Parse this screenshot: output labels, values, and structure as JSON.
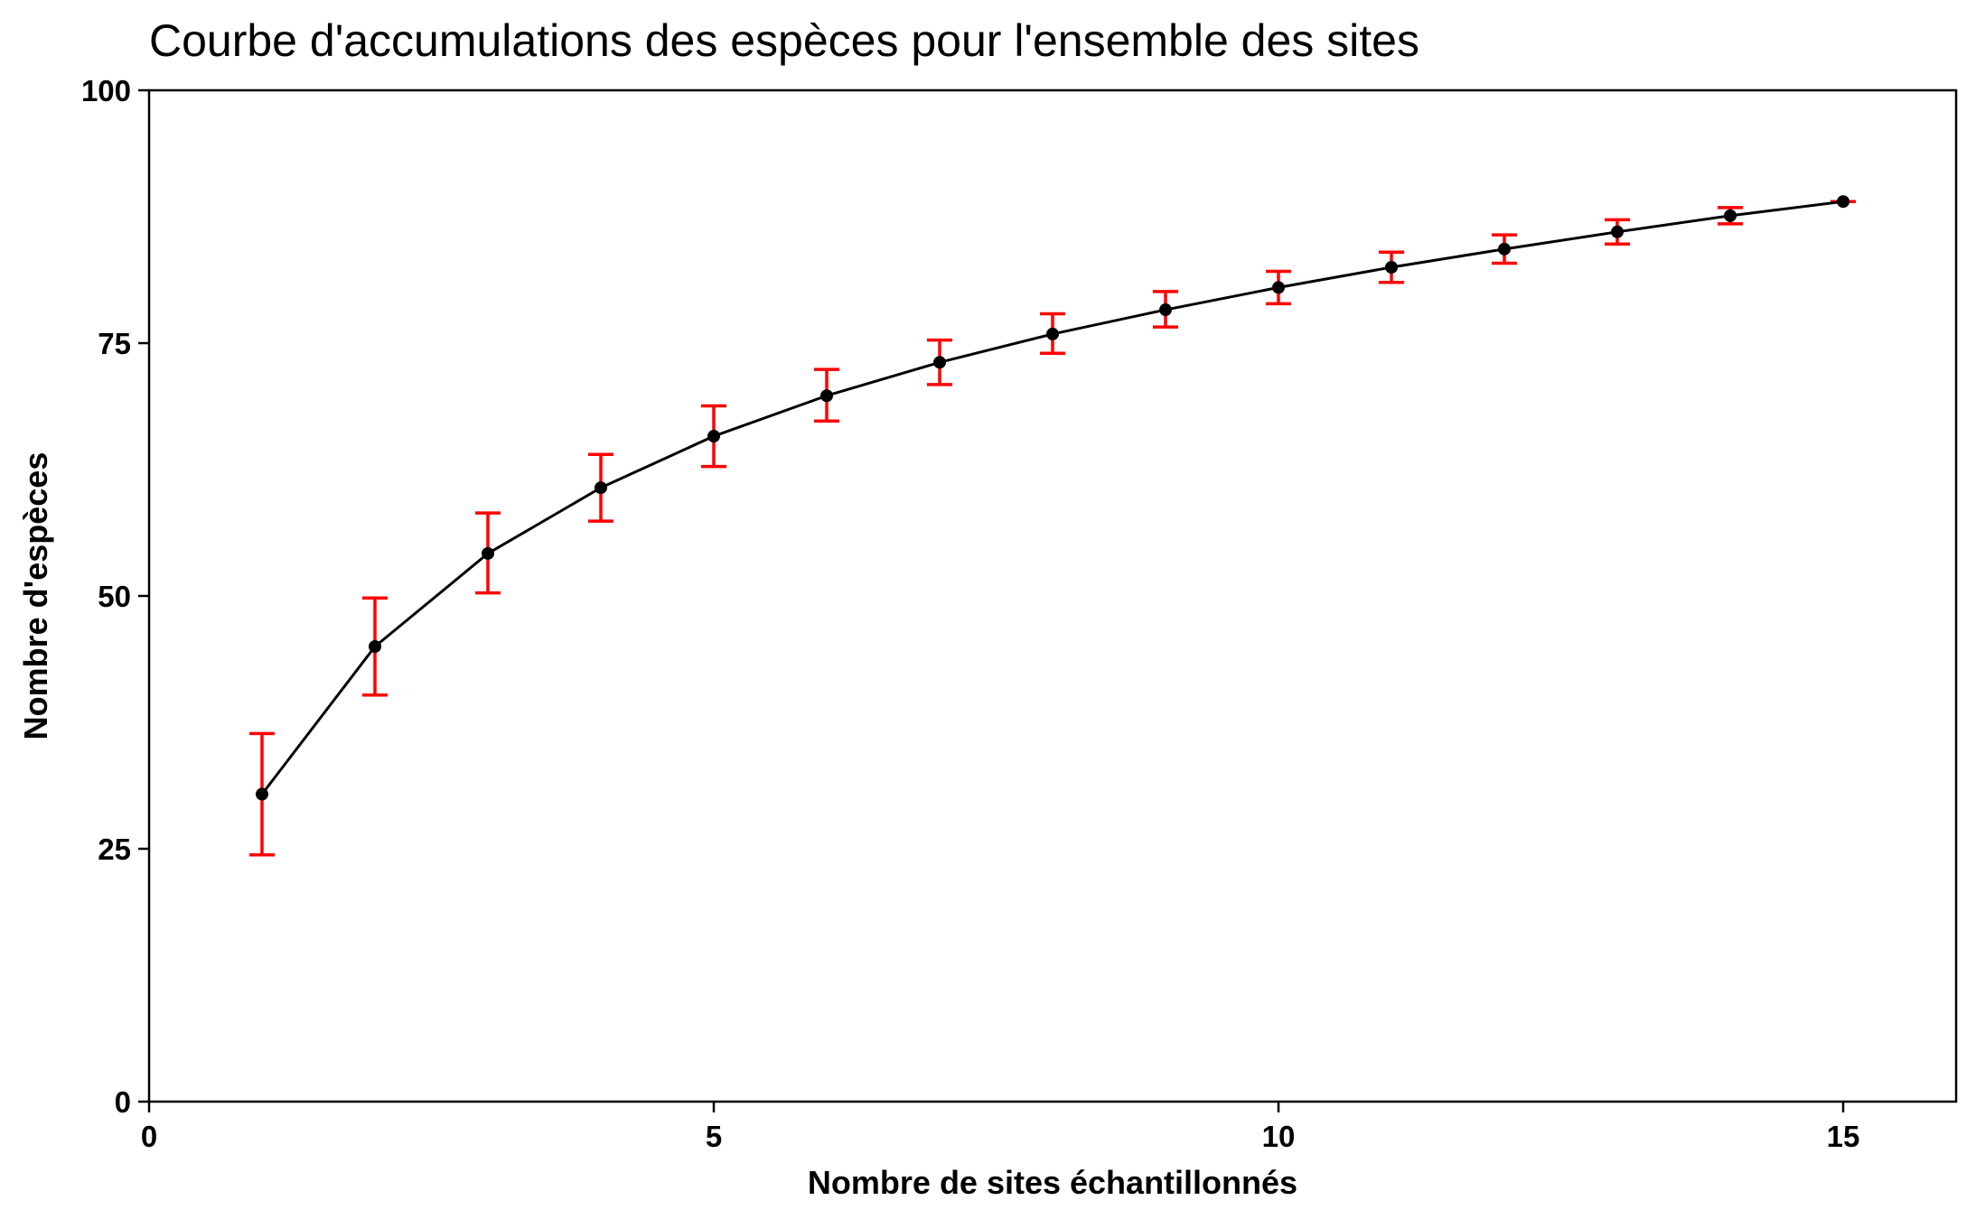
{
  "chart_data": {
    "type": "line",
    "title": "Courbe d'accumulations des espèces pour l'ensemble des sites",
    "xlabel": "Nombre de sites échantillonnés",
    "ylabel": "Nombre d'espèces",
    "xlim": [
      0,
      16
    ],
    "ylim": [
      0,
      100
    ],
    "xticks": [
      0,
      5,
      10,
      15
    ],
    "yticks": [
      0,
      25,
      50,
      75,
      100
    ],
    "grid": false,
    "legend": "none",
    "series": [
      {
        "x": [
          1,
          2,
          3,
          4,
          5,
          6,
          7,
          8,
          9,
          10,
          11,
          12,
          13,
          14,
          15
        ],
        "values": [
          30.4,
          45.0,
          54.2,
          60.7,
          65.8,
          69.8,
          73.1,
          75.9,
          78.3,
          80.5,
          82.5,
          84.3,
          86.0,
          87.6,
          89.0
        ],
        "error_low": [
          24.4,
          40.2,
          50.3,
          57.4,
          62.8,
          67.3,
          70.9,
          74.0,
          76.6,
          78.9,
          81.0,
          82.9,
          84.8,
          86.8,
          89.0
        ],
        "error_high": [
          36.4,
          49.8,
          58.2,
          64.0,
          68.8,
          72.4,
          75.3,
          77.9,
          80.1,
          82.1,
          84.0,
          85.7,
          87.2,
          88.4,
          89.0
        ]
      }
    ],
    "colors": {
      "line": "#000000",
      "points": "#000000",
      "error_bars": "#ff0000"
    }
  }
}
